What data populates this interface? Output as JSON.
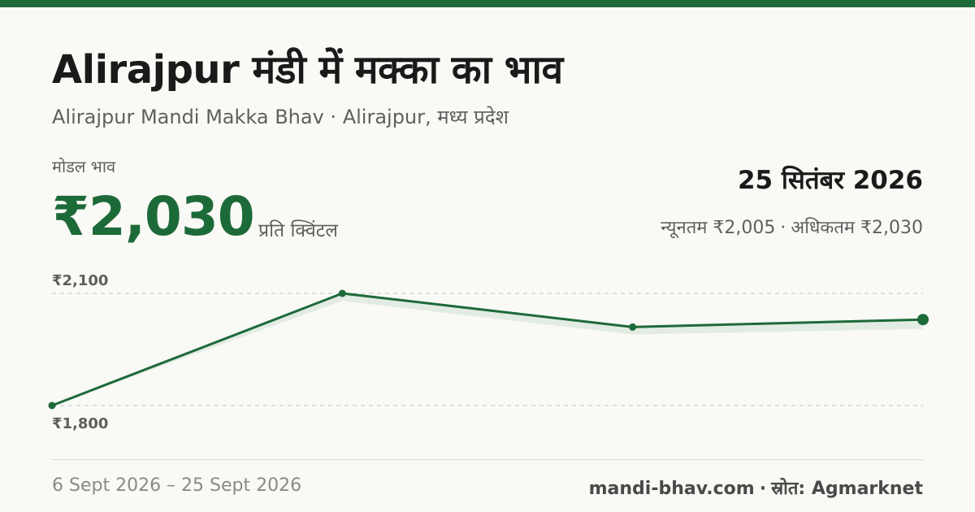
{
  "header": {
    "title": "Alirajpur मंडी में मक्का का भाव",
    "subtitle": "Alirajpur Mandi Makka Bhav · Alirajpur, मध्य प्रदेश"
  },
  "summary": {
    "modal_label": "मोडल भाव",
    "modal_price": "₹2,030",
    "unit": "प्रति क्विंटल",
    "date": "25 सितंबर 2026",
    "min_text": "न्यूनतम ₹2,005",
    "separator": "·",
    "max_text": "अधिकतम ₹2,030"
  },
  "footer": {
    "period": "6 Sept 2026 – 25 Sept 2026",
    "site": "mandi-bhav.com",
    "separator": "·",
    "source": "स्रोत: Agmarknet"
  },
  "colors": {
    "accent": "#1d6a39",
    "band": "#e3ece3",
    "grid": "#c2c2c2"
  },
  "chart_data": {
    "type": "line",
    "x": [
      "6 Sept 2026",
      "12 Sept 2026",
      "19 Sept 2026",
      "25 Sept 2026"
    ],
    "series": [
      {
        "values": [
          1800,
          2100,
          2010,
          2030
        ]
      }
    ],
    "band": {
      "lower": [
        1800,
        2080,
        1990,
        2005
      ],
      "upper": [
        1800,
        2100,
        2010,
        2030
      ]
    },
    "y_ticks": [
      1800,
      2100
    ],
    "y_tick_labels": [
      "₹1,800",
      "₹2,100"
    ],
    "ylim": [
      1800,
      2100
    ],
    "grid": true
  }
}
